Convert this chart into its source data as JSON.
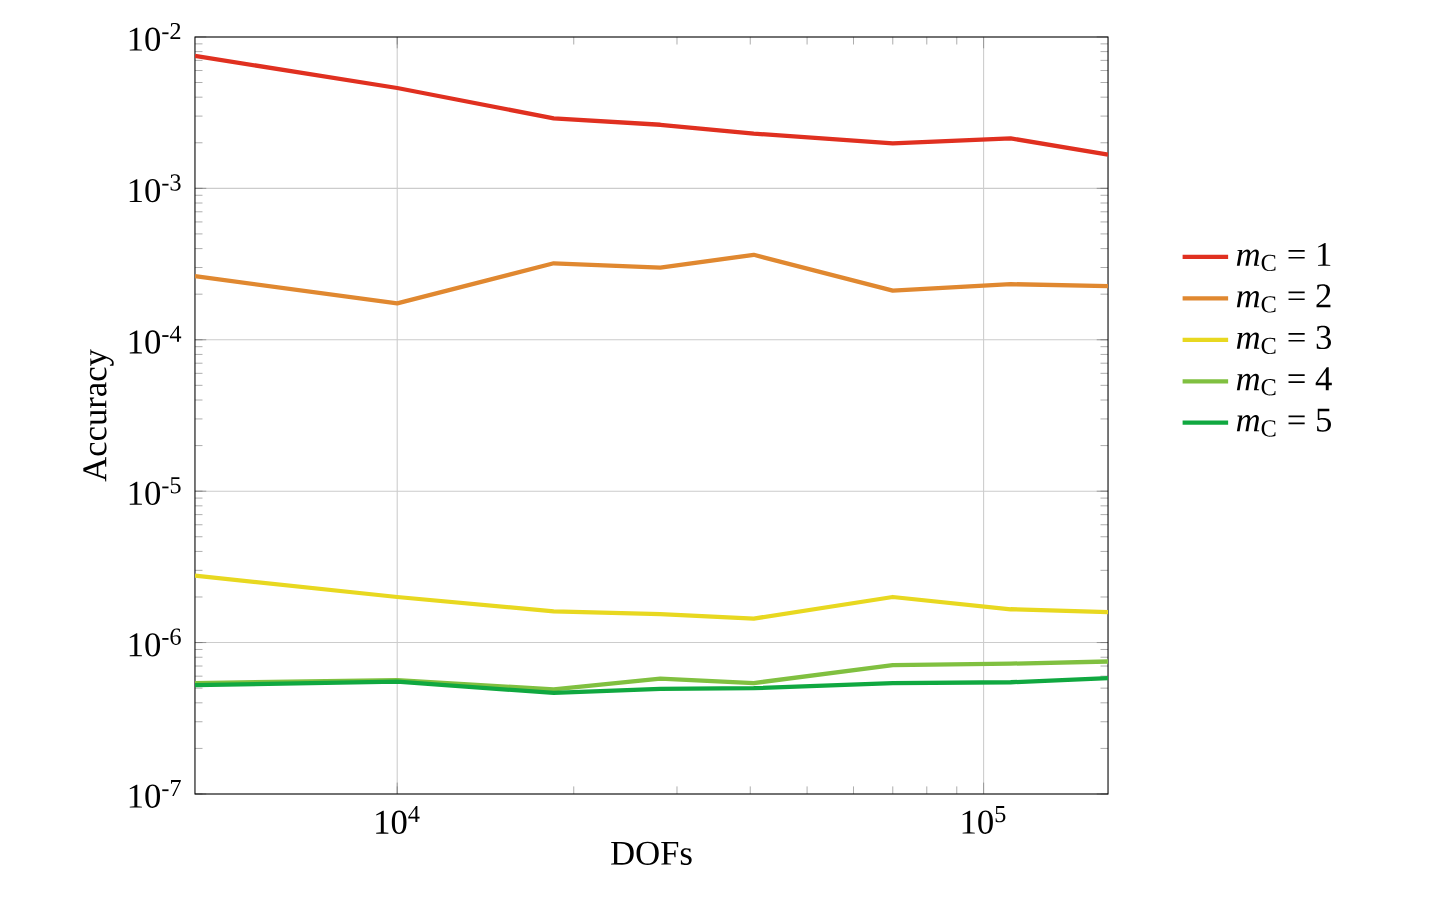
{
  "chart_data": {
    "type": "line",
    "xlabel": "DOFs",
    "ylabel": "Accuracy",
    "log": "xy",
    "grid": true,
    "legend": "right",
    "x": [
      4520,
      10000,
      18490,
      28100,
      40550,
      70000,
      111200,
      163000
    ],
    "xlim": [
      4520,
      163000
    ],
    "ylim": [
      1e-07,
      0.01
    ],
    "xticks": [
      {
        "value": 10000,
        "label": "10$^{4}$"
      },
      {
        "value": 100000,
        "label": "10$^{5}$"
      }
    ],
    "yticks": [
      {
        "value": 1e-07,
        "label": "10$^{-7}$"
      },
      {
        "value": 1e-06,
        "label": "10$^{-6}$"
      },
      {
        "value": 1e-05,
        "label": "10$^{-5}$"
      },
      {
        "value": 0.0001,
        "label": "10$^{-4}$"
      },
      {
        "value": 0.001,
        "label": "10$^{-3}$"
      },
      {
        "value": 0.01,
        "label": "10$^{-2}$"
      }
    ],
    "series": [
      {
        "name": "*m*$_{C}$ = 1",
        "color": "#e03020",
        "values": [
          0.0075,
          0.0046,
          0.0029,
          0.00263,
          0.0023,
          0.00198,
          0.00214,
          0.00167
        ]
      },
      {
        "name": "*m*$_{C}$ = 2",
        "color": "#e08830",
        "values": [
          0.000263,
          0.000174,
          0.00032,
          0.0003,
          0.000364,
          0.000211,
          0.000233,
          0.000226
        ]
      },
      {
        "name": "*m*$_{C}$ = 3",
        "color": "#e8d820",
        "values": [
          2.77e-06,
          2e-06,
          1.61e-06,
          1.54e-06,
          1.44e-06,
          2e-06,
          1.66e-06,
          1.59e-06
        ]
      },
      {
        "name": "*m*$_{C}$ = 4",
        "color": "#80c040",
        "values": [
          5.4e-07,
          5.65e-07,
          4.9e-07,
          5.77e-07,
          5.4e-07,
          7.1e-07,
          7.26e-07,
          7.5e-07
        ]
      },
      {
        "name": "*m*$_{C}$ = 5",
        "color": "#10a840",
        "values": [
          5.24e-07,
          5.52e-07,
          4.65e-07,
          4.95e-07,
          5e-07,
          5.4e-07,
          5.47e-07,
          5.83e-07
        ]
      }
    ]
  }
}
